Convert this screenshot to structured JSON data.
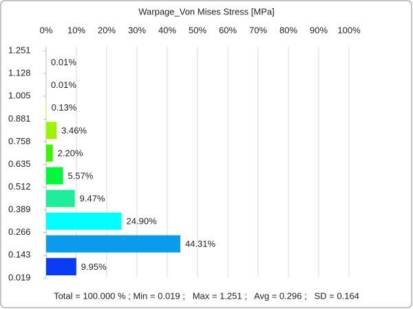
{
  "chart_data": {
    "type": "histogram",
    "orientation": "horizontal",
    "title": "Warpage_Von Mises Stress [MPa]",
    "bins": [
      0.019,
      0.143,
      0.266,
      0.389,
      0.512,
      0.635,
      0.758,
      0.881,
      1.005,
      1.128,
      1.251
    ],
    "values": [
      9.95,
      44.31,
      24.9,
      9.47,
      5.57,
      2.2,
      3.46,
      0.13,
      0.01,
      0.01
    ],
    "value_labels": [
      "9.95%",
      "44.31%",
      "24.90%",
      "9.47%",
      "5.57%",
      "2.20%",
      "3.46%",
      "0.13%",
      "0.01%",
      "0.01%"
    ],
    "colors": [
      "#0a3cf5",
      "#0a9bef",
      "#00ffff",
      "#1eec9a",
      "#00f83a",
      "#3cf500",
      "#9cf500",
      "#eef700",
      "#ffc000",
      "#ff6000"
    ],
    "xlim": [
      0,
      100
    ],
    "xticks": [
      {
        "value": 0,
        "label": "0%"
      },
      {
        "value": 10,
        "label": "10%"
      },
      {
        "value": 20,
        "label": "20%"
      },
      {
        "value": 30,
        "label": "30%"
      },
      {
        "value": 40,
        "label": "40%"
      },
      {
        "value": 50,
        "label": "50%"
      },
      {
        "value": 60,
        "label": "60%"
      },
      {
        "value": 70,
        "label": "70%"
      },
      {
        "value": 80,
        "label": "80%"
      },
      {
        "value": 90,
        "label": "90%"
      },
      {
        "value": 100,
        "label": "100%"
      }
    ],
    "grid": true,
    "footer": "Total = 100.000 % ; Min = 0.019 ;   Max = 1.251 ;   Avg = 0.296 ;   SD = 0.164"
  }
}
